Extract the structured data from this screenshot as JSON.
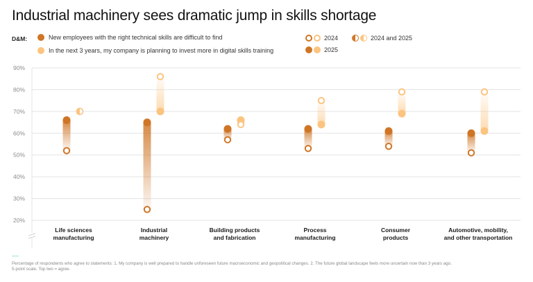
{
  "header": {
    "title": "Industrial machinery sees dramatic jump in skills shortage"
  },
  "legend": {
    "group_label": "D&M:",
    "series": [
      {
        "name": "New employees with the right technical skills are difficult to find",
        "color": "#cf7526"
      },
      {
        "name": "In the next 3 years, my company is planning to invest more in digital skills training",
        "color": "#fbc47f"
      }
    ],
    "years": {
      "y2024": "2024",
      "y2025": "2025",
      "both": "2024 and 2025"
    }
  },
  "chart_data": {
    "type": "dumbbell",
    "title": "Industrial machinery sees dramatic jump in skills shortage",
    "xlabel": "",
    "ylabel": "",
    "ylim": [
      20,
      90
    ],
    "yticks": [
      "90%",
      "80%",
      "70%",
      "60%",
      "50%",
      "40%",
      "30%",
      "20%"
    ],
    "ytick_values": [
      90,
      80,
      70,
      60,
      50,
      40,
      30,
      20
    ],
    "grid": true,
    "legend_position": "top-left",
    "categories": [
      [
        "Life sciences",
        "manufacturing"
      ],
      [
        "Industrial",
        "machinery"
      ],
      [
        "Building products",
        "and fabrication"
      ],
      [
        "Process",
        "manufacturing"
      ],
      [
        "Consumer",
        "products"
      ],
      [
        "Automotive, mobility,",
        "and other transportation"
      ]
    ],
    "series": [
      {
        "name": "New employees with the right technical skills are difficult to find",
        "color": "#cf7526",
        "values_2024": [
          52,
          25,
          57,
          53,
          54,
          51
        ],
        "values_2025": [
          66,
          65,
          62,
          62,
          61,
          60
        ]
      },
      {
        "name": "In the next 3 years, my company is planning to invest more in digital skills training",
        "color": "#fbc47f",
        "values_2024": [
          70,
          86,
          64,
          75,
          79,
          79
        ],
        "values_2025": [
          70,
          70,
          66,
          64,
          69,
          61
        ]
      }
    ]
  },
  "footnote": {
    "line1": "Percentage of respondents who agree to statements: 1. My company is well prepared to handle unforeseen future macroeconomic and geopolitical changes. 2. The future global landscape feels more uncertain now than 3 years ago.",
    "line2": "5-point scale. Top two = agree."
  }
}
